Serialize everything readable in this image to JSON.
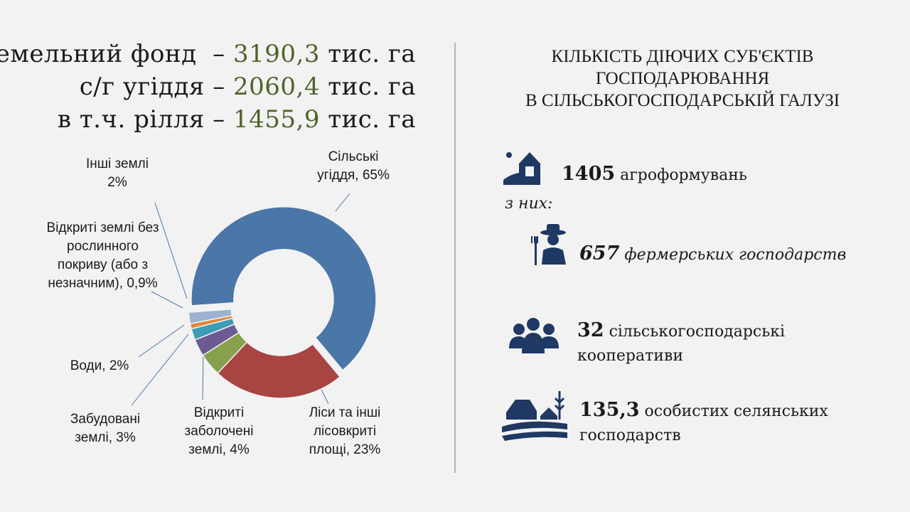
{
  "header": {
    "lines": [
      {
        "label": "Земельний фонд  –",
        "value": "3190,3",
        "unit": "тис. га"
      },
      {
        "label": "с/г угіддя –",
        "value": "2060,4",
        "unit": "тис. га"
      },
      {
        "label": "в т.ч. рілля –",
        "value": "1455,9",
        "unit": "тис. га"
      }
    ]
  },
  "chart_data": {
    "type": "donut",
    "categories": [
      "Сільські угіддя,",
      "Ліси та інші лісовкриті площі,",
      "Відкриті заболочені землі,",
      "Забудовані землі,",
      "Води,",
      "Відкриті землі без рослинного покриву (або з незначним),",
      "Інші землі"
    ],
    "values": [
      65,
      23,
      4,
      3,
      2,
      0.9,
      2
    ],
    "value_labels": [
      "65%",
      "23%",
      "4%",
      "3%",
      "2%",
      "0,9%",
      "2%"
    ],
    "colors": [
      "#4a76a8",
      "#a84442",
      "#86a04e",
      "#6e5a92",
      "#3d9db6",
      "#e0883a",
      "#9db0d0"
    ]
  },
  "panel": {
    "title": [
      "КІЛЬКІСТЬ ДІЮЧИХ СУБ'ЄКТІВ",
      "ГОСПОДАРЮВАННЯ",
      "В СІЛЬСЬКОГОСПОДАРСЬКІЙ  ГАЛУЗІ"
    ],
    "items": [
      {
        "number": "1405",
        "text": "агроформувань"
      },
      {
        "text": "з них:"
      },
      {
        "number": "657",
        "text": "фермерських господарств"
      },
      {
        "number": "32",
        "text": "сільськогосподарські кооперативи"
      },
      {
        "number": "135,3",
        "text": "особистих селянських господарств"
      }
    ]
  }
}
